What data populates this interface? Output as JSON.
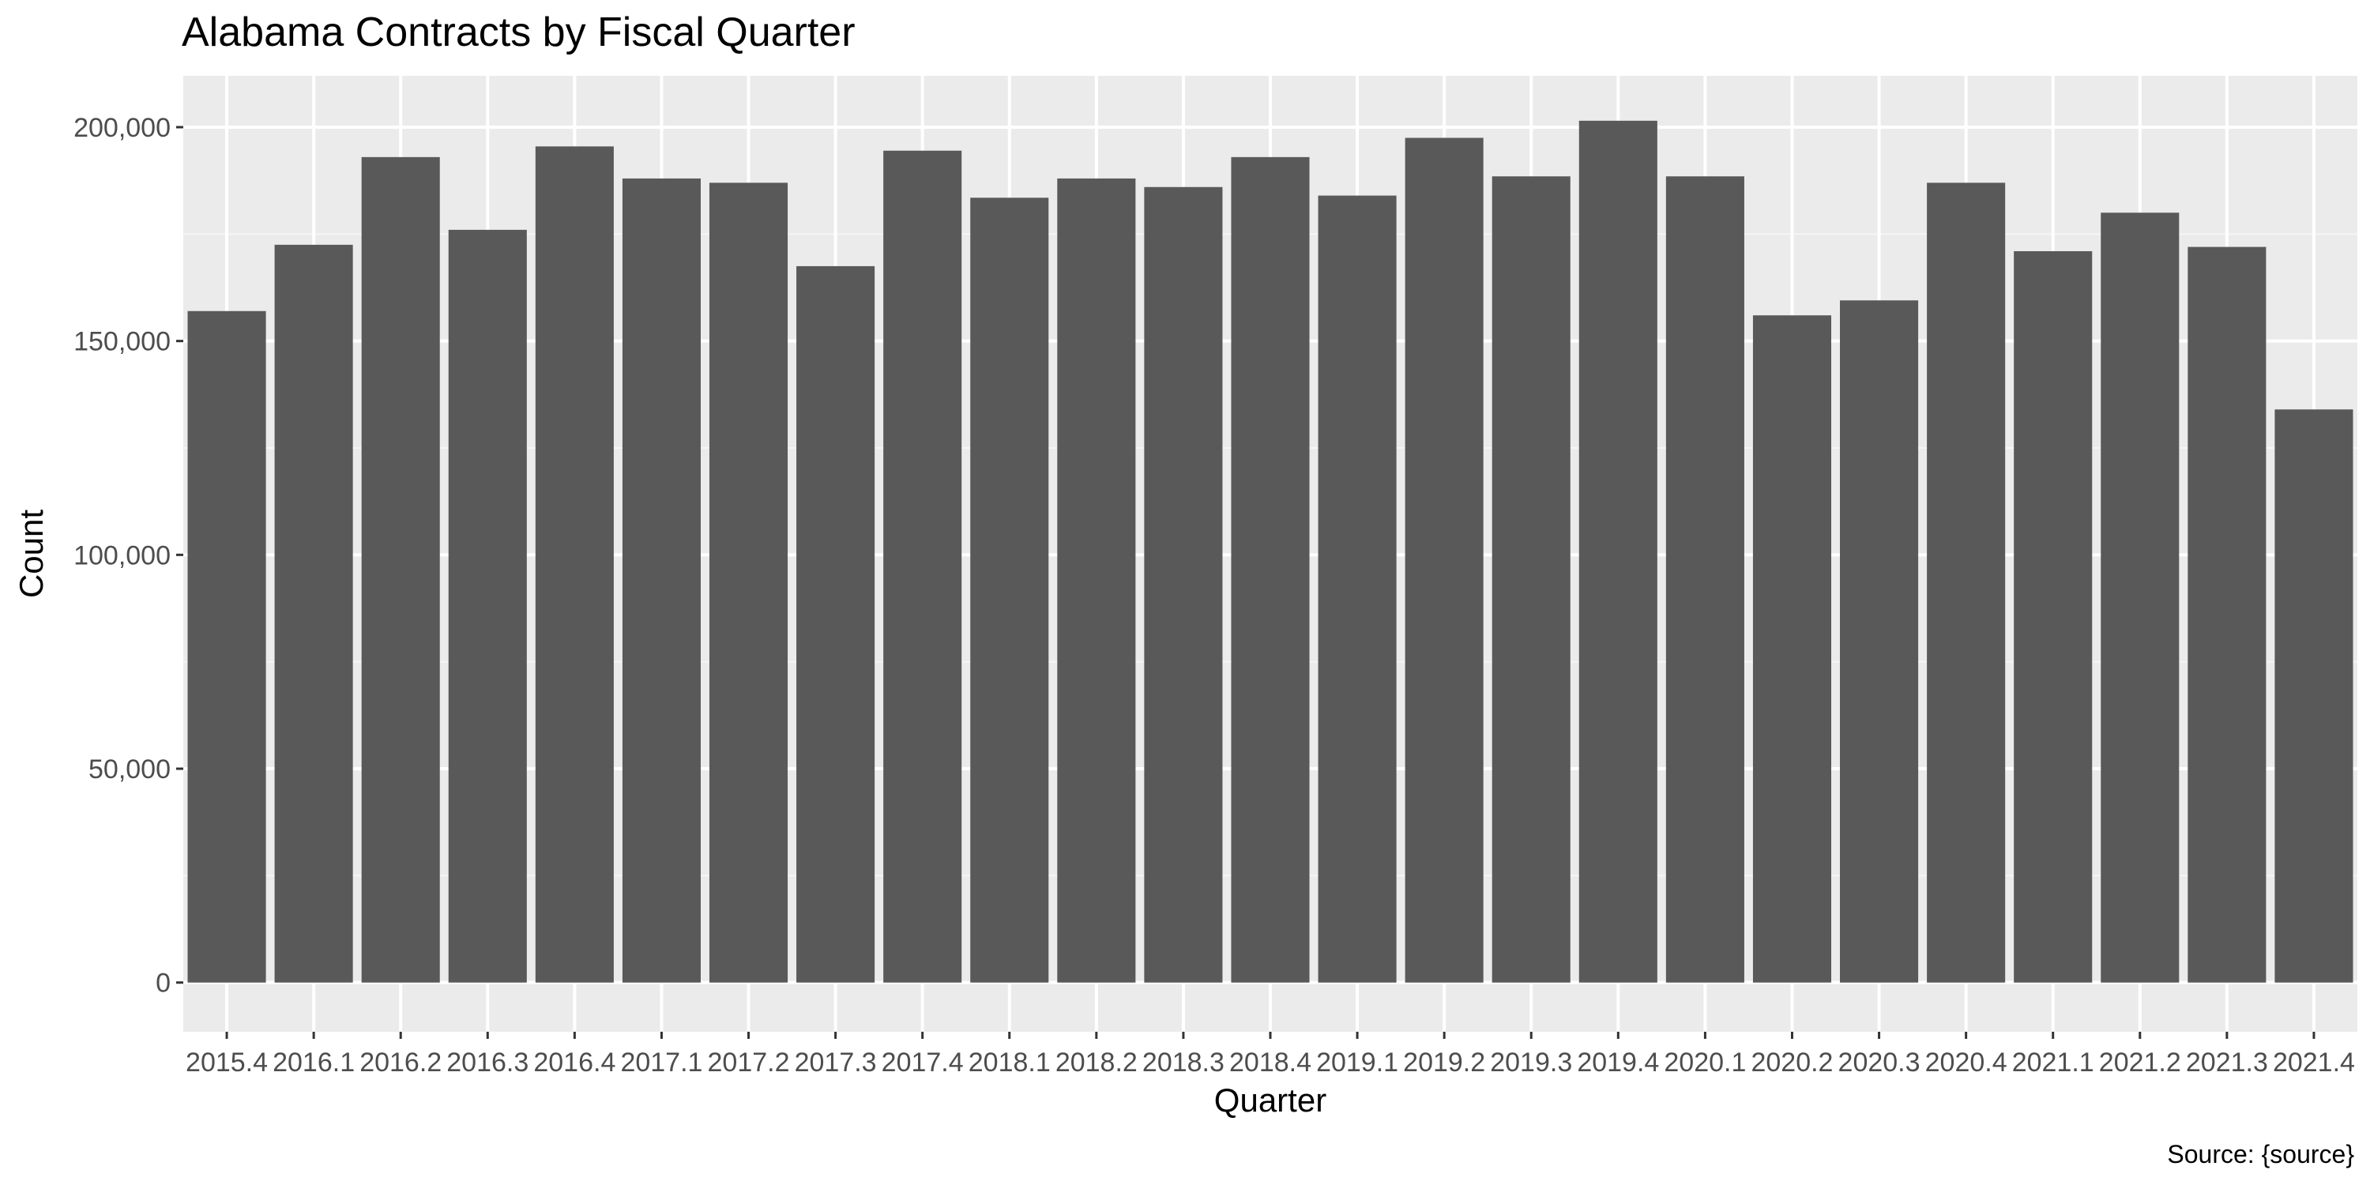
{
  "chart_data": {
    "type": "bar",
    "title": "Alabama Contracts by Fiscal Quarter",
    "xlabel": "Quarter",
    "ylabel": "Count",
    "caption": "Source: {source}",
    "categories": [
      "2015.4",
      "2016.1",
      "2016.2",
      "2016.3",
      "2016.4",
      "2017.1",
      "2017.2",
      "2017.3",
      "2017.4",
      "2018.1",
      "2018.2",
      "2018.3",
      "2018.4",
      "2019.1",
      "2019.2",
      "2019.3",
      "2019.4",
      "2020.1",
      "2020.2",
      "2020.3",
      "2020.4",
      "2021.1",
      "2021.2",
      "2021.3",
      "2021.4"
    ],
    "values": [
      157000,
      172500,
      193000,
      176000,
      195500,
      188000,
      187000,
      167500,
      194500,
      183500,
      188000,
      186000,
      193000,
      184000,
      197500,
      188500,
      201500,
      188500,
      156000,
      159500,
      187000,
      171000,
      180000,
      172000,
      134000
    ],
    "ylim": [
      -11500,
      212000
    ],
    "yticks": [
      0,
      50000,
      100000,
      150000,
      200000
    ],
    "ytick_labels": [
      "0",
      "50,000",
      "100,000",
      "150,000",
      "200,000"
    ],
    "grid": true,
    "legend": "none",
    "colors": {
      "bar": "#595959",
      "panel": "#ebebeb",
      "grid_major": "#ffffff",
      "grid_minor": "#f5f5f5",
      "tick_text": "#4d4d4d",
      "tick_mark": "#333333"
    }
  }
}
